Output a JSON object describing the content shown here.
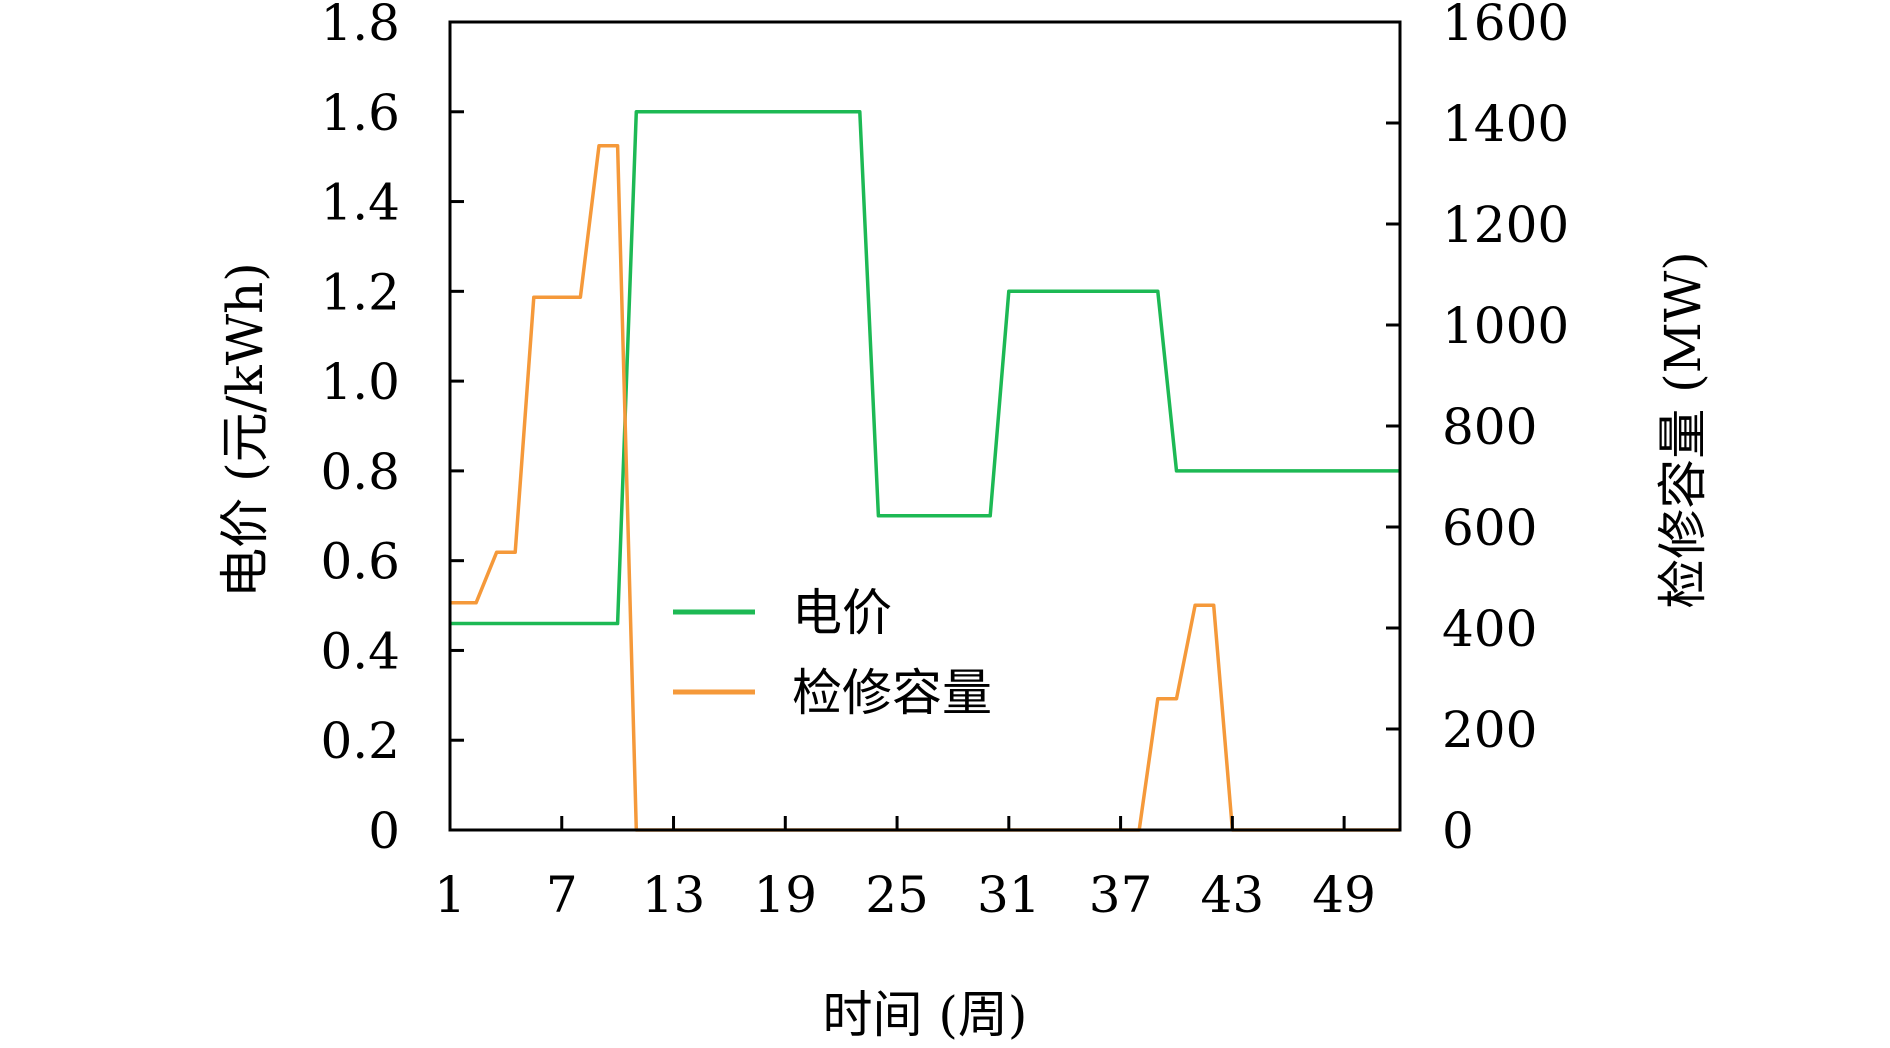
{
  "chart_data": {
    "type": "line",
    "xlabel": "时间 (周)",
    "ylabel_left": "电价 (元/kWh)",
    "ylabel_right": "检修容量 (MW)",
    "x_ticks": [
      1,
      7,
      13,
      19,
      25,
      31,
      37,
      43,
      49
    ],
    "xlim": [
      1,
      52
    ],
    "ylim_left": [
      0,
      1.8
    ],
    "ylim_right": [
      0,
      1600
    ],
    "y_ticks_left": [
      "0",
      "0.2",
      "0.4",
      "0.6",
      "0.8",
      "1.0",
      "1.2",
      "1.4",
      "1.6",
      "1.8"
    ],
    "y_ticks_right": [
      "0",
      "200",
      "400",
      "600",
      "800",
      "1000",
      "1200",
      "1400",
      "1600"
    ],
    "grid": false,
    "legend_position": "center-left",
    "series": [
      {
        "name": "电价",
        "axis": "left",
        "color": "#1db954",
        "points": [
          [
            1,
            0.46
          ],
          [
            10,
            0.46
          ],
          [
            11,
            1.6
          ],
          [
            23,
            1.6
          ],
          [
            24,
            0.7
          ],
          [
            30,
            0.7
          ],
          [
            31,
            1.2
          ],
          [
            39,
            1.2
          ],
          [
            40,
            0.8
          ],
          [
            52,
            0.8
          ]
        ]
      },
      {
        "name": "检修容量",
        "axis": "right",
        "color": "#f5993a",
        "points": [
          [
            1,
            450
          ],
          [
            2.4,
            450
          ],
          [
            3.5,
            550
          ],
          [
            4.5,
            550
          ],
          [
            5.5,
            1055
          ],
          [
            8,
            1055
          ],
          [
            9,
            1355
          ],
          [
            10,
            1355
          ],
          [
            11,
            0
          ],
          [
            38,
            0
          ],
          [
            39,
            260
          ],
          [
            40,
            260
          ],
          [
            41,
            445
          ],
          [
            42,
            445
          ],
          [
            43,
            0
          ],
          [
            52,
            0
          ]
        ]
      }
    ]
  }
}
